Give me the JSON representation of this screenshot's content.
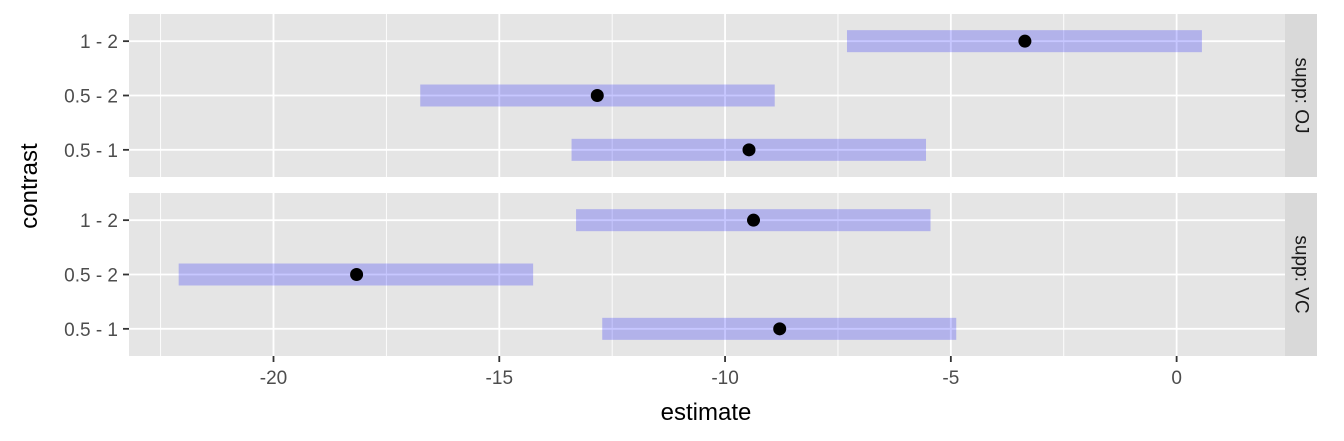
{
  "chart_data": {
    "type": "interval",
    "xlabel": "estimate",
    "ylabel": "contrast",
    "xlim": [
      -23.2,
      2.4
    ],
    "x_ticks": [
      -20,
      -15,
      -10,
      -5,
      0
    ],
    "x_tick_labels": [
      "-20",
      "-15",
      "-10",
      "-5",
      "0"
    ],
    "categories": [
      "1 - 2",
      "0.5 - 2",
      "0.5 - 1"
    ],
    "grid": true,
    "facets": [
      {
        "label": "supp: OJ",
        "rows": [
          {
            "contrast": "1 - 2",
            "estimate": -3.36,
            "lower": -7.3,
            "upper": 0.56
          },
          {
            "contrast": "0.5 - 2",
            "estimate": -12.83,
            "lower": -16.75,
            "upper": -8.9
          },
          {
            "contrast": "0.5 - 1",
            "estimate": -9.47,
            "lower": -13.4,
            "upper": -5.55
          }
        ]
      },
      {
        "label": "supp: VC",
        "rows": [
          {
            "contrast": "1 - 2",
            "estimate": -9.37,
            "lower": -13.3,
            "upper": -5.45
          },
          {
            "contrast": "0.5 - 2",
            "estimate": -18.16,
            "lower": -22.1,
            "upper": -14.25
          },
          {
            "contrast": "0.5 - 1",
            "estimate": -8.79,
            "lower": -12.72,
            "upper": -4.88
          }
        ]
      }
    ],
    "colors": {
      "panel_bg": "#e5e5e5",
      "grid": "#ffffff",
      "strip_bg": "#d9d9d9",
      "interval": "#0000ff",
      "point": "#000000"
    }
  }
}
